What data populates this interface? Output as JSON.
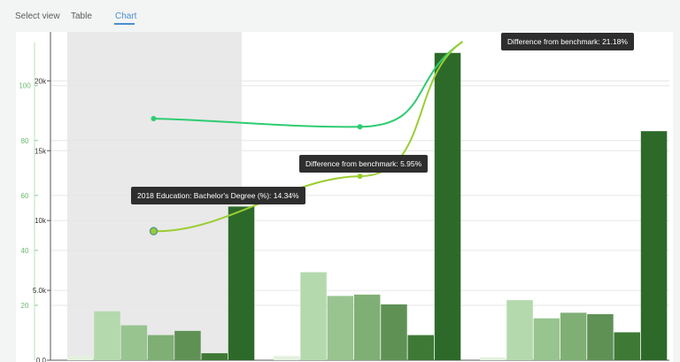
{
  "view_selector": {
    "label": "Select view",
    "tabs": [
      {
        "label": "Table",
        "active": false
      },
      {
        "label": "Chart",
        "active": true
      }
    ]
  },
  "tooltips": [
    {
      "text": "Difference from benchmark:  21.18%"
    },
    {
      "text": "Difference from benchmark:  5.95%"
    },
    {
      "text": "2018 Education: Bachelor's Degree (%):  14.34%"
    }
  ],
  "colors": {
    "accent": "#4a8fd0",
    "bar_shades": [
      "#e3f1de",
      "#b4d9ad",
      "#98c48f",
      "#7faf74",
      "#5f9155",
      "#3e7a36",
      "#2d6a2a"
    ],
    "line_benchmark": "#2ecc71",
    "line_education": "#9bcd32",
    "highlight_band": "#e9e9e9"
  },
  "chart_data": {
    "type": "bar",
    "ylim": [
      0,
      23000
    ],
    "yticks": [
      "0.0",
      "5.0k",
      "10k",
      "15k",
      "20k"
    ],
    "y2lim": [
      0,
      117
    ],
    "y2ticks": [
      "20",
      "40",
      "60",
      "80",
      "100"
    ],
    "groups": [
      {
        "highlighted": true,
        "bars": [
          300,
          3500,
          2500,
          1800,
          2100,
          500,
          11000
        ]
      },
      {
        "highlighted": false,
        "bars": [
          300,
          6300,
          4600,
          4700,
          4000,
          1800,
          22000
        ]
      },
      {
        "highlighted": false,
        "bars": [
          200,
          4300,
          3000,
          3400,
          3300,
          2000,
          16400
        ]
      }
    ],
    "series": [
      {
        "values": [
          88,
          85,
          116
        ]
      },
      {
        "values": [
          47,
          67,
          116
        ]
      }
    ]
  }
}
